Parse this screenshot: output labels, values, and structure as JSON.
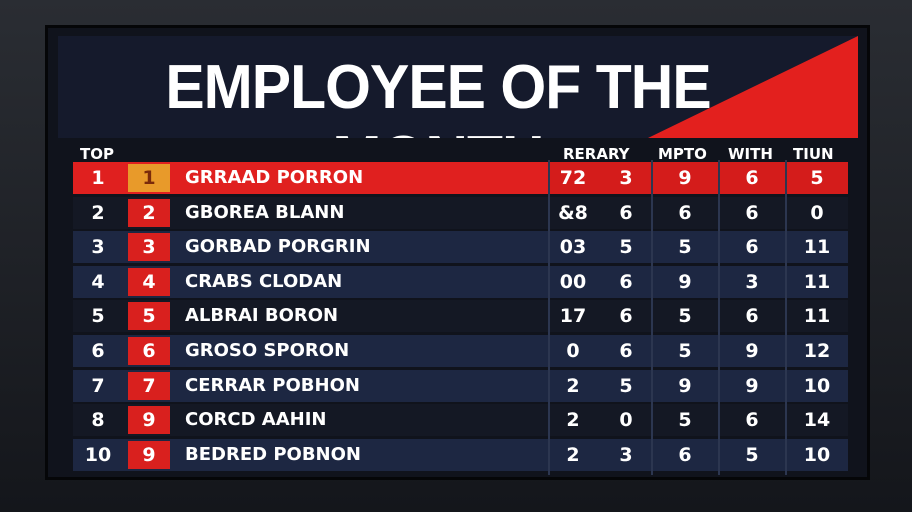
{
  "board": {
    "title": "EMPLOYEE OF THE MONTH",
    "headers": {
      "rank": "TOP",
      "rerary": "RERARY",
      "mpto": "MPTO",
      "with": "WITH",
      "tiun": "TIUN"
    },
    "rows": [
      [
        "1",
        "1",
        "GRRAAD PORRON",
        "72",
        "3",
        "9",
        "6",
        "5"
      ],
      [
        "2",
        "2",
        "GBOREA BLANN",
        "&8",
        "6",
        "6",
        "6",
        "0"
      ],
      [
        "3",
        "3",
        "GORBAD PORGRIN",
        "03",
        "5",
        "5",
        "6",
        "11"
      ],
      [
        "4",
        "4",
        "CRABS CLODAN",
        "00",
        "6",
        "9",
        "3",
        "11"
      ],
      [
        "5",
        "5",
        "ALBRAI BORON",
        "17",
        "6",
        "5",
        "6",
        "11"
      ],
      [
        "6",
        "6",
        "GROSO SPORON",
        "0",
        "6",
        "5",
        "9",
        "12"
      ],
      [
        "7",
        "7",
        "CERRAR POBHON",
        "2",
        "5",
        "9",
        "9",
        "10"
      ],
      [
        "8",
        "9",
        "CORCD AAHIN",
        "2",
        "0",
        "5",
        "6",
        "14"
      ],
      [
        "10",
        "9",
        "BEDRED POBNON",
        "2",
        "3",
        "6",
        "5",
        "10"
      ]
    ]
  }
}
